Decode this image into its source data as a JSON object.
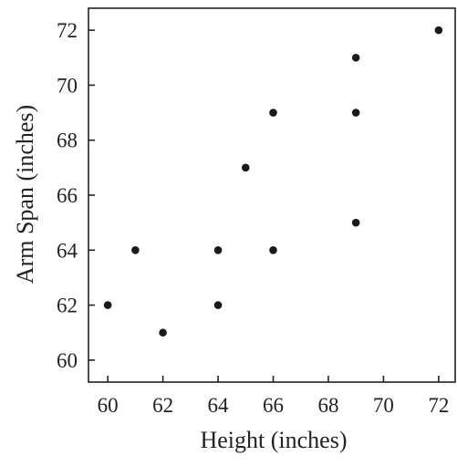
{
  "chart_data": {
    "type": "scatter",
    "title": "",
    "xlabel": "Height (inches)",
    "ylabel": "Arm Span (inches)",
    "xlim": [
      59.3,
      72.6
    ],
    "ylim": [
      59.2,
      72.8
    ],
    "xticks": [
      60,
      62,
      64,
      66,
      68,
      70,
      72
    ],
    "yticks": [
      60,
      62,
      64,
      66,
      68,
      70,
      72
    ],
    "xtick_labels": [
      "60",
      "62",
      "64",
      "66",
      "68",
      "70",
      "72"
    ],
    "ytick_labels": [
      "60",
      "62",
      "64",
      "66",
      "68",
      "70",
      "72"
    ],
    "grid": false,
    "points": [
      {
        "x": 60,
        "y": 62
      },
      {
        "x": 61,
        "y": 64
      },
      {
        "x": 62,
        "y": 61
      },
      {
        "x": 64,
        "y": 64
      },
      {
        "x": 64,
        "y": 62
      },
      {
        "x": 65,
        "y": 67
      },
      {
        "x": 66,
        "y": 69
      },
      {
        "x": 66,
        "y": 64
      },
      {
        "x": 69,
        "y": 71
      },
      {
        "x": 69,
        "y": 69
      },
      {
        "x": 69,
        "y": 65
      },
      {
        "x": 72,
        "y": 72
      }
    ],
    "colors": {
      "axis": "#222222",
      "marker": "#1a1a1a",
      "background": "#ffffff"
    }
  }
}
